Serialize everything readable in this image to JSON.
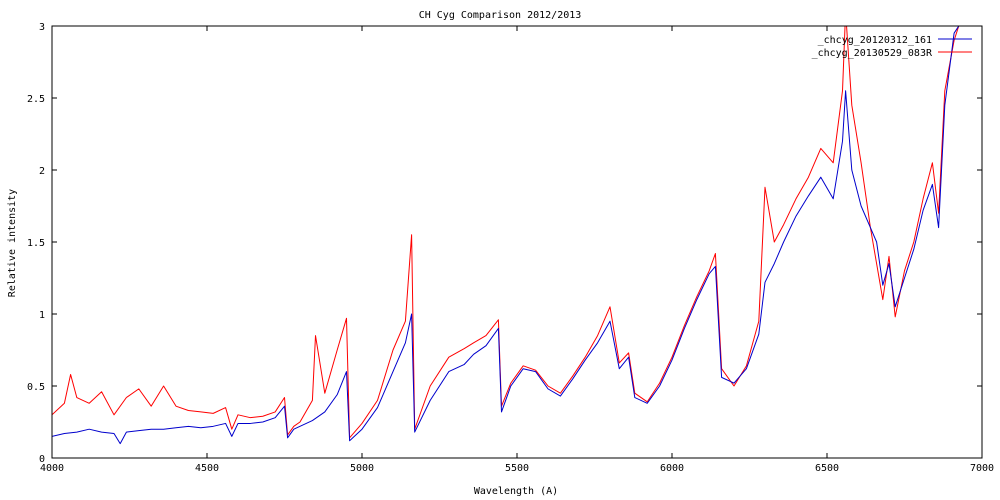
{
  "chart_data": {
    "type": "line",
    "title": "CH Cyg Comparison 2012/2013",
    "xlabel": "Wavelength (A)",
    "ylabel": "Relative intensity",
    "xlim": [
      4000,
      7000
    ],
    "ylim": [
      0,
      3
    ],
    "xticks": [
      4000,
      4500,
      5000,
      5500,
      6000,
      6500,
      7000
    ],
    "yticks": [
      0,
      0.5,
      1,
      1.5,
      2,
      2.5,
      3
    ],
    "xtick_labels": [
      "4000",
      "4500",
      "5000",
      "5500",
      "6000",
      "6500",
      "7000"
    ],
    "ytick_labels": [
      "0",
      "0.5",
      "1",
      "1.5",
      "2",
      "2.5",
      "3"
    ],
    "grid": false,
    "legend_position": "top-right",
    "series": [
      {
        "name": "_chcyg_20120312_161",
        "color": "#0000cc",
        "x": [
          4000,
          4040,
          4080,
          4120,
          4160,
          4200,
          4220,
          4240,
          4280,
          4320,
          4360,
          4400,
          4440,
          4480,
          4520,
          4560,
          4580,
          4600,
          4640,
          4680,
          4720,
          4750,
          4760,
          4780,
          4800,
          4840,
          4880,
          4920,
          4950,
          4960,
          5000,
          5050,
          5100,
          5140,
          5160,
          5170,
          5220,
          5280,
          5330,
          5360,
          5400,
          5440,
          5450,
          5480,
          5520,
          5560,
          5600,
          5640,
          5680,
          5720,
          5760,
          5800,
          5830,
          5860,
          5880,
          5920,
          5960,
          6000,
          6040,
          6080,
          6120,
          6140,
          6160,
          6200,
          6240,
          6280,
          6300,
          6330,
          6360,
          6400,
          6440,
          6480,
          6520,
          6550,
          6560,
          6580,
          6610,
          6640,
          6660,
          6680,
          6700,
          6720,
          6750,
          6780,
          6810,
          6840,
          6860,
          6880,
          6910,
          6940,
          7000
        ],
        "y": [
          0.15,
          0.17,
          0.18,
          0.2,
          0.18,
          0.17,
          0.1,
          0.18,
          0.19,
          0.2,
          0.2,
          0.21,
          0.22,
          0.21,
          0.22,
          0.24,
          0.15,
          0.24,
          0.24,
          0.25,
          0.28,
          0.36,
          0.14,
          0.2,
          0.22,
          0.26,
          0.32,
          0.44,
          0.6,
          0.12,
          0.2,
          0.35,
          0.6,
          0.8,
          1.0,
          0.18,
          0.4,
          0.6,
          0.65,
          0.72,
          0.78,
          0.9,
          0.32,
          0.5,
          0.62,
          0.6,
          0.48,
          0.43,
          0.55,
          0.68,
          0.8,
          0.95,
          0.62,
          0.7,
          0.42,
          0.38,
          0.5,
          0.68,
          0.9,
          1.1,
          1.28,
          1.33,
          0.56,
          0.52,
          0.62,
          0.86,
          1.22,
          1.35,
          1.5,
          1.68,
          1.82,
          1.95,
          1.8,
          2.2,
          2.55,
          2.0,
          1.75,
          1.6,
          1.5,
          1.2,
          1.35,
          1.05,
          1.25,
          1.45,
          1.72,
          1.9,
          1.6,
          2.45,
          2.95,
          3.05,
          3.2
        ]
      },
      {
        "name": "_chcyg_20130529_083R",
        "color": "#ff0000",
        "x": [
          4000,
          4040,
          4060,
          4080,
          4120,
          4160,
          4200,
          4240,
          4280,
          4320,
          4360,
          4400,
          4440,
          4480,
          4520,
          4560,
          4580,
          4600,
          4640,
          4680,
          4720,
          4750,
          4760,
          4780,
          4800,
          4840,
          4850,
          4880,
          4920,
          4950,
          4960,
          5000,
          5050,
          5100,
          5140,
          5160,
          5170,
          5220,
          5280,
          5330,
          5360,
          5400,
          5440,
          5450,
          5480,
          5520,
          5560,
          5600,
          5640,
          5680,
          5720,
          5760,
          5800,
          5830,
          5860,
          5880,
          5920,
          5960,
          6000,
          6040,
          6080,
          6120,
          6140,
          6160,
          6200,
          6240,
          6280,
          6300,
          6330,
          6360,
          6400,
          6440,
          6480,
          6520,
          6550,
          6560,
          6580,
          6610,
          6640,
          6660,
          6680,
          6700,
          6720,
          6750,
          6780,
          6810,
          6840,
          6860,
          6880,
          6910,
          6940,
          7000
        ],
        "y": [
          0.3,
          0.38,
          0.58,
          0.42,
          0.38,
          0.46,
          0.3,
          0.42,
          0.48,
          0.36,
          0.5,
          0.36,
          0.33,
          0.32,
          0.31,
          0.35,
          0.2,
          0.3,
          0.28,
          0.29,
          0.32,
          0.42,
          0.16,
          0.22,
          0.25,
          0.4,
          0.85,
          0.45,
          0.75,
          0.97,
          0.14,
          0.24,
          0.4,
          0.75,
          0.95,
          1.55,
          0.2,
          0.5,
          0.7,
          0.76,
          0.8,
          0.85,
          0.96,
          0.36,
          0.52,
          0.64,
          0.61,
          0.5,
          0.45,
          0.57,
          0.7,
          0.85,
          1.05,
          0.66,
          0.73,
          0.45,
          0.39,
          0.52,
          0.7,
          0.92,
          1.12,
          1.3,
          1.42,
          0.62,
          0.5,
          0.64,
          0.95,
          1.88,
          1.5,
          1.62,
          1.8,
          1.95,
          2.15,
          2.05,
          2.55,
          3.1,
          2.45,
          2.05,
          1.6,
          1.35,
          1.1,
          1.4,
          0.98,
          1.3,
          1.5,
          1.8,
          2.05,
          1.7,
          2.55,
          2.9,
          3.1,
          3.3
        ]
      }
    ]
  }
}
